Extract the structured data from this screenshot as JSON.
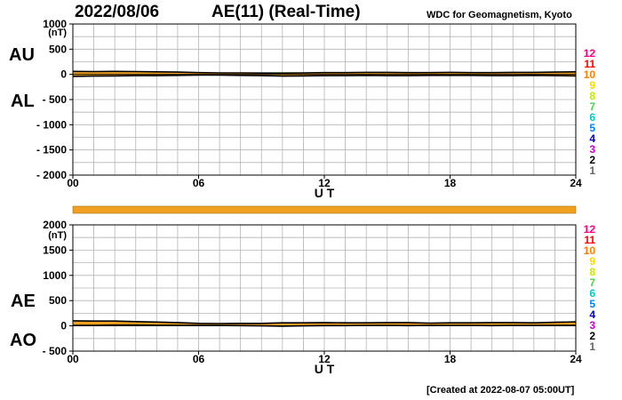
{
  "header": {
    "date": "2022/08/06",
    "title": "AE(11) (Real-Time)",
    "org": "WDC for Geomagnetism, Kyoto"
  },
  "footer": "[Created at 2022-08-07 05:00UT]",
  "colors": {
    "fill": "#f0a020",
    "trace": "#000000",
    "grid": "#b4b4b4",
    "levels": [
      "#ff007f",
      "#ff0000",
      "#ff8000",
      "#ffd700",
      "#c8e600",
      "#50d250",
      "#00c8c8",
      "#0080ff",
      "#0000c8",
      "#c800c8",
      "#000000",
      "#646464",
      "#c8c8c8"
    ]
  },
  "chart_data": [
    {
      "type": "area",
      "panel": "AU/AL",
      "side_labels": [
        "AU",
        "AL"
      ],
      "unit": "(nT)",
      "ylim": [
        -2000,
        1000
      ],
      "yticks": [
        "1000",
        "500",
        "0",
        "- 500",
        "- 1000",
        "- 1500",
        "- 2000"
      ],
      "xlim": [
        0,
        24
      ],
      "xticks": [
        "00",
        "06",
        "12",
        "18",
        "24"
      ],
      "xlabel": "U T",
      "level_labels": [
        "12",
        "11",
        "10",
        "9",
        "8",
        "7",
        "6",
        "5",
        "4",
        "3",
        "2",
        "1"
      ],
      "series": [
        {
          "name": "AU",
          "x": [
            0,
            1,
            2,
            3,
            4,
            5,
            6,
            7,
            8,
            9,
            10,
            11,
            12,
            13,
            14,
            15,
            16,
            17,
            18,
            19,
            20,
            21,
            22,
            23,
            24
          ],
          "values": [
            60,
            55,
            60,
            55,
            50,
            45,
            35,
            30,
            30,
            25,
            25,
            30,
            35,
            35,
            40,
            40,
            35,
            35,
            40,
            35,
            35,
            40,
            40,
            45,
            50
          ]
        },
        {
          "name": "AL",
          "x": [
            0,
            1,
            2,
            3,
            4,
            5,
            6,
            7,
            8,
            9,
            10,
            11,
            12,
            13,
            14,
            15,
            16,
            17,
            18,
            19,
            20,
            21,
            22,
            23,
            24
          ],
          "values": [
            -40,
            -35,
            -30,
            -25,
            -25,
            -20,
            -15,
            -15,
            -20,
            -25,
            -35,
            -30,
            -25,
            -25,
            -20,
            -25,
            -25,
            -20,
            -20,
            -20,
            -25,
            -25,
            -20,
            -25,
            -30
          ]
        }
      ]
    },
    {
      "type": "area",
      "panel": "AE/AO",
      "side_labels": [
        "AE",
        "AO"
      ],
      "unit": "(nT)",
      "ylim": [
        -500,
        2000
      ],
      "yticks": [
        "2000",
        "1500",
        "1000",
        "500",
        "0",
        "- 500"
      ],
      "xlim": [
        0,
        24
      ],
      "xticks": [
        "00",
        "06",
        "12",
        "18",
        "24"
      ],
      "xlabel": "U T",
      "level_labels": [
        "12",
        "11",
        "10",
        "9",
        "8",
        "7",
        "6",
        "5",
        "4",
        "3",
        "2",
        "1"
      ],
      "series": [
        {
          "name": "AE",
          "x": [
            0,
            1,
            2,
            3,
            4,
            5,
            6,
            7,
            8,
            9,
            10,
            11,
            12,
            13,
            14,
            15,
            16,
            17,
            18,
            19,
            20,
            21,
            22,
            23,
            24
          ],
          "values": [
            100,
            95,
            95,
            85,
            75,
            65,
            50,
            45,
            50,
            50,
            60,
            60,
            65,
            60,
            60,
            65,
            65,
            55,
            60,
            60,
            65,
            65,
            60,
            70,
            80
          ]
        },
        {
          "name": "AO",
          "x": [
            0,
            1,
            2,
            3,
            4,
            5,
            6,
            7,
            8,
            9,
            10,
            11,
            12,
            13,
            14,
            15,
            16,
            17,
            18,
            19,
            20,
            21,
            22,
            23,
            24
          ],
          "values": [
            10,
            10,
            15,
            15,
            12,
            12,
            10,
            8,
            5,
            0,
            -5,
            0,
            5,
            5,
            10,
            8,
            5,
            8,
            10,
            8,
            5,
            8,
            10,
            10,
            10
          ]
        }
      ]
    }
  ]
}
